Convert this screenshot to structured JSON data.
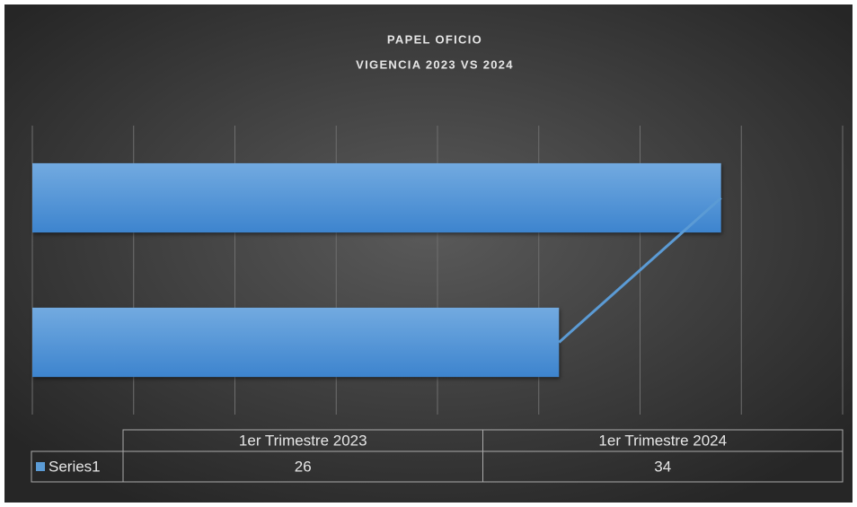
{
  "chart_data": {
    "type": "bar",
    "orientation": "horizontal",
    "title": "PAPEL OFICIO",
    "subtitle": "VIGENCIA 2023 VS 2024",
    "categories": [
      "1er Trimestre 2023",
      "1er Trimestre 2024"
    ],
    "series": [
      {
        "name": "Series1",
        "color": "#5b9bd5",
        "values": [
          26,
          34
        ]
      }
    ],
    "xlim": [
      0,
      40
    ],
    "xticks": [
      0,
      5,
      10,
      15,
      20,
      25,
      30,
      35,
      40
    ],
    "grid": true,
    "series_lines": true,
    "data_table": true
  }
}
